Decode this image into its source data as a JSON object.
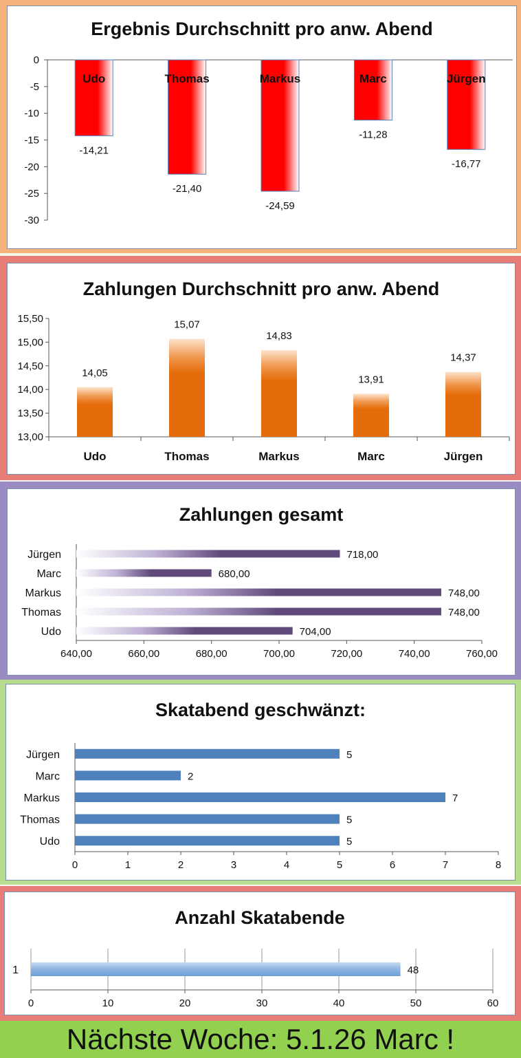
{
  "charts": [
    {
      "type": "bar",
      "title": "Ergebnis Durchschnitt pro anw. Abend",
      "categories": [
        "Udo",
        "Thomas",
        "Markus",
        "Marc",
        "Jürgen"
      ],
      "values": [
        -14.21,
        -21.4,
        -24.59,
        -11.28,
        -16.77
      ],
      "value_labels": [
        "-14,21",
        "-21,40",
        "-24,59",
        "-11,28",
        "-16,77"
      ],
      "ylim": [
        -30,
        0
      ],
      "ticks": [
        "0",
        "-5",
        "-10",
        "-15",
        "-20",
        "-25",
        "-30"
      ],
      "xlabel": "",
      "ylabel": ""
    },
    {
      "type": "bar",
      "title": "Zahlungen Durchschnitt pro anw. Abend",
      "categories": [
        "Udo",
        "Thomas",
        "Markus",
        "Marc",
        "Jürgen"
      ],
      "values": [
        14.05,
        15.07,
        14.83,
        13.91,
        14.37
      ],
      "value_labels": [
        "14,05",
        "15,07",
        "14,83",
        "13,91",
        "14,37"
      ],
      "ylim": [
        13.0,
        15.5
      ],
      "ticks": [
        "15,50",
        "15,00",
        "14,50",
        "14,00",
        "13,50",
        "13,00"
      ],
      "xlabel": "",
      "ylabel": ""
    },
    {
      "type": "bar",
      "orientation": "horizontal",
      "title": "Zahlungen gesamt",
      "categories": [
        "Jürgen",
        "Marc",
        "Markus",
        "Thomas",
        "Udo"
      ],
      "values": [
        718.0,
        680.0,
        748.0,
        748.0,
        704.0
      ],
      "value_labels": [
        "718,00",
        "680,00",
        "748,00",
        "748,00",
        "704,00"
      ],
      "xlim": [
        640,
        760
      ],
      "ticks": [
        "640,00",
        "660,00",
        "680,00",
        "700,00",
        "720,00",
        "740,00",
        "760,00"
      ],
      "xlabel": "",
      "ylabel": ""
    },
    {
      "type": "bar",
      "orientation": "horizontal",
      "title": "Skatabend geschwänzt:",
      "categories": [
        "Jürgen",
        "Marc",
        "Markus",
        "Thomas",
        "Udo"
      ],
      "values": [
        5,
        2,
        7,
        5,
        5
      ],
      "value_labels": [
        "5",
        "2",
        "7",
        "5",
        "5"
      ],
      "xlim": [
        0,
        8
      ],
      "ticks": [
        "0",
        "1",
        "2",
        "3",
        "4",
        "5",
        "6",
        "7",
        "8"
      ],
      "xlabel": "",
      "ylabel": ""
    },
    {
      "type": "bar",
      "orientation": "horizontal",
      "title": "Anzahl Skatabende",
      "categories": [
        "1"
      ],
      "values": [
        48
      ],
      "value_labels": [
        "48"
      ],
      "xlim": [
        0,
        60
      ],
      "ticks": [
        "0",
        "10",
        "20",
        "30",
        "40",
        "50",
        "60"
      ],
      "xlabel": "",
      "ylabel": ""
    }
  ],
  "banner": {
    "text": "Nächste Woche: 5.1.26 Marc !"
  },
  "colors": {
    "red": "#ff0000",
    "orange": "#e46c0a",
    "purple": "#604a7b",
    "blue": "#4f81bd",
    "lightblue": "#8db4e2",
    "banner_green": "#92d050",
    "frame_orange": "#f5b27a",
    "frame_red": "#e87d78",
    "frame_purple": "#9a8cc2",
    "frame_green": "#b7dd8f"
  }
}
